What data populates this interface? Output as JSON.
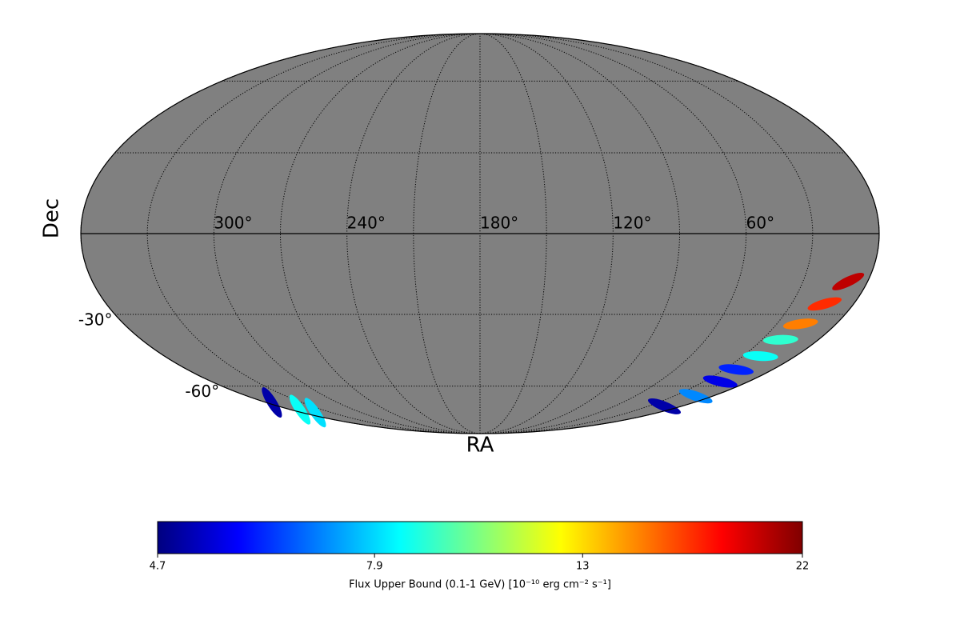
{
  "chart_data": {
    "type": "skymap",
    "projection": "mollweide",
    "xlabel": "RA",
    "ylabel": "Dec",
    "xlim": [
      360,
      0
    ],
    "ylim": [
      -90,
      90
    ],
    "xticks": [
      {
        "value": 300,
        "label": "300°"
      },
      {
        "value": 240,
        "label": "240°"
      },
      {
        "value": 180,
        "label": "180°"
      },
      {
        "value": 120,
        "label": "120°"
      },
      {
        "value": 60,
        "label": "60°"
      }
    ],
    "yticks": [
      {
        "value": -30,
        "label": "-30°"
      },
      {
        "value": -60,
        "label": "-60°"
      }
    ],
    "graticule": {
      "ra": [
        0,
        30,
        60,
        90,
        120,
        150,
        180,
        210,
        240,
        270,
        300,
        330,
        360
      ],
      "dec": [
        -60,
        -30,
        30,
        60
      ]
    },
    "background": "#808080",
    "points": {
      "ra": [
        9,
        14,
        18,
        20,
        20,
        22.5,
        19,
        13,
        15,
        355,
        351,
        346.5
      ],
      "dec": [
        -17.6,
        -26,
        -33.7,
        -40,
        -46.7,
        -52.5,
        -57.9,
        -64.9,
        -70.2,
        -68.1,
        -72,
        -73.7
      ],
      "values": [
        20,
        17,
        15,
        9,
        8.5,
        6,
        5.5,
        7,
        5,
        5,
        8.5,
        8
      ]
    },
    "colorbar": {
      "label": "Flux Upper Bound (0.1-1 GeV) [10⁻¹⁰ erg cm⁻² s⁻¹]",
      "lim": [
        4.7,
        22
      ],
      "ticks": [
        4.7,
        7.9,
        13,
        22
      ],
      "log": true,
      "colormap": "jet"
    }
  }
}
